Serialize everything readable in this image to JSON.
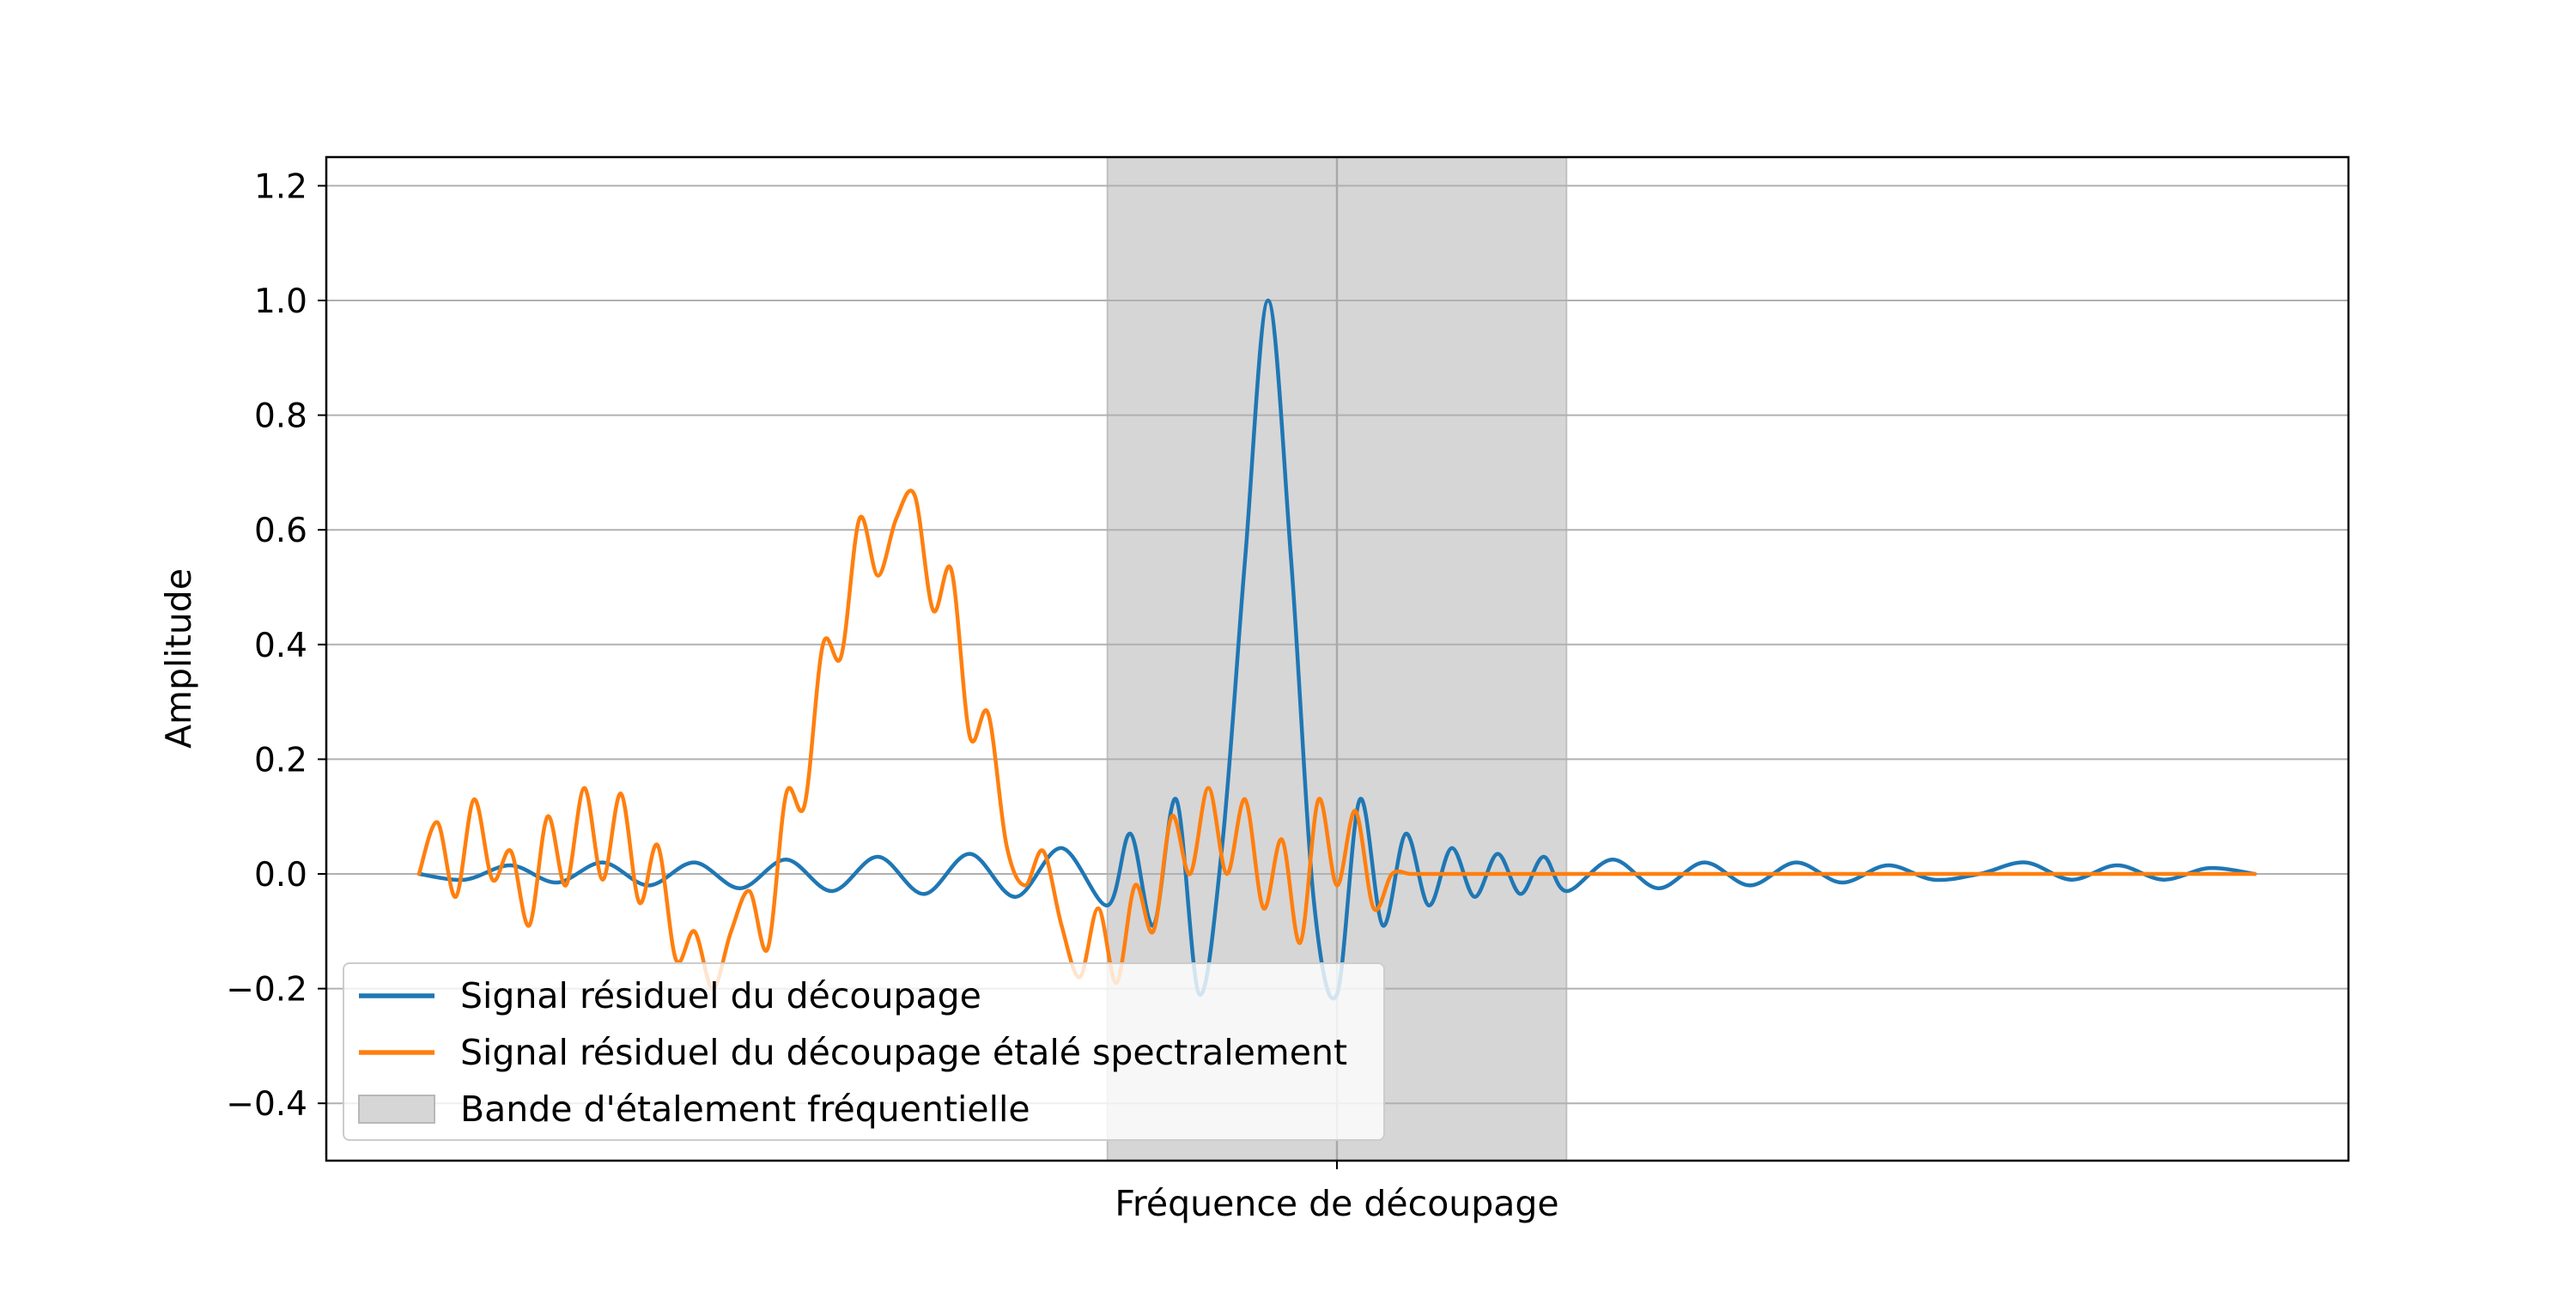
{
  "chart_data": {
    "type": "line",
    "title": "",
    "xlabel": "",
    "ylabel": "Amplitude",
    "x_tick_label": "Fréquence de découpage",
    "x_range": [
      -1.0,
      1.0
    ],
    "ylim": [
      -0.5,
      1.25
    ],
    "y_ticks": [
      -0.4,
      -0.2,
      0.0,
      0.2,
      0.4,
      0.6,
      0.8,
      1.0,
      1.2
    ],
    "y_tick_labels": [
      "−0.4",
      "−0.2",
      "0.0",
      "0.2",
      "0.4",
      "0.6",
      "0.8",
      "1.0",
      "1.2"
    ],
    "grid": "horizontal",
    "legend_position": "lower-left",
    "center_line": {
      "x": 0.0,
      "color": "#a9a9a9"
    },
    "band": {
      "name": "Bande d'étalement fréquentielle",
      "x_start": -0.25,
      "x_end": 0.25,
      "color": "#d6d6d6"
    },
    "series": [
      {
        "name": "Signal résiduel du découpage",
        "color": "#1f77b4",
        "x": [
          -1.0,
          -0.95,
          -0.9,
          -0.85,
          -0.8,
          -0.75,
          -0.7,
          -0.65,
          -0.6,
          -0.55,
          -0.5,
          -0.45,
          -0.4,
          -0.35,
          -0.3,
          -0.25,
          -0.225,
          -0.2,
          -0.175,
          -0.15,
          -0.125,
          -0.1,
          -0.075,
          -0.05,
          -0.025,
          0.0,
          0.025,
          0.05,
          0.075,
          0.1,
          0.125,
          0.15,
          0.175,
          0.2,
          0.225,
          0.25,
          0.3,
          0.35,
          0.4,
          0.45,
          0.5,
          0.55,
          0.6,
          0.65,
          0.7,
          0.75,
          0.8,
          0.85,
          0.9,
          0.95,
          1.0
        ],
        "y": [
          0.0,
          -0.01,
          0.015,
          -0.015,
          0.02,
          -0.02,
          0.02,
          -0.025,
          0.025,
          -0.03,
          0.03,
          -0.035,
          0.035,
          -0.04,
          0.045,
          -0.055,
          0.07,
          -0.09,
          0.13,
          -0.21,
          0.05,
          0.55,
          1.0,
          0.55,
          -0.05,
          -0.21,
          0.13,
          -0.09,
          0.07,
          -0.055,
          0.045,
          -0.04,
          0.035,
          -0.035,
          0.03,
          -0.03,
          0.025,
          -0.025,
          0.02,
          -0.02,
          0.02,
          -0.015,
          0.015,
          -0.01,
          0.0,
          0.02,
          -0.01,
          0.015,
          -0.01,
          0.01,
          0.0
        ]
      },
      {
        "name": "Signal résiduel du découpage étalé spectralement",
        "color": "#ff7f0e",
        "x": [
          -1.0,
          -0.98,
          -0.96,
          -0.94,
          -0.92,
          -0.9,
          -0.88,
          -0.86,
          -0.84,
          -0.82,
          -0.8,
          -0.78,
          -0.76,
          -0.74,
          -0.72,
          -0.7,
          -0.68,
          -0.66,
          -0.64,
          -0.62,
          -0.6,
          -0.58,
          -0.56,
          -0.54,
          -0.52,
          -0.5,
          -0.48,
          -0.46,
          -0.44,
          -0.42,
          -0.4,
          -0.38,
          -0.36,
          -0.34,
          -0.32,
          -0.3,
          -0.28,
          -0.26,
          -0.24,
          -0.22,
          -0.2,
          -0.18,
          -0.16,
          -0.14,
          -0.12,
          -0.1,
          -0.08,
          -0.06,
          -0.04,
          -0.02,
          0.0,
          0.02,
          0.04,
          0.06,
          0.08,
          0.1,
          0.12,
          0.14,
          0.16,
          0.18,
          0.2,
          0.22,
          0.24,
          0.26,
          0.28,
          0.3,
          0.32,
          0.34,
          0.36,
          0.38,
          0.4,
          0.42,
          0.44,
          0.46,
          0.48,
          0.5,
          0.52,
          0.54,
          0.56,
          0.58,
          0.6,
          0.62,
          0.64,
          0.66,
          0.68,
          0.7,
          0.72,
          0.74,
          0.76,
          0.78,
          0.8,
          0.82,
          0.84,
          0.86,
          0.88,
          0.9,
          0.92,
          0.94,
          0.96,
          0.98,
          1.0
        ],
        "y": [
          0.0,
          0.09,
          -0.04,
          0.13,
          -0.01,
          0.04,
          -0.09,
          0.1,
          -0.02,
          0.15,
          -0.01,
          0.14,
          -0.05,
          0.05,
          -0.15,
          -0.1,
          -0.2,
          -0.1,
          -0.03,
          -0.13,
          0.14,
          0.12,
          0.4,
          0.38,
          0.62,
          0.52,
          0.62,
          0.66,
          0.46,
          0.53,
          0.24,
          0.28,
          0.05,
          -0.02,
          0.04,
          -0.09,
          -0.18,
          -0.06,
          -0.19,
          -0.02,
          -0.1,
          0.1,
          0.0,
          0.15,
          0.0,
          0.13,
          -0.06,
          0.06,
          -0.12,
          0.13,
          -0.02,
          0.11,
          -0.06,
          0.0,
          0.0,
          0.0,
          0.0,
          0.0,
          0.0,
          0.0,
          0.0,
          0.0,
          0.0,
          0.0,
          0.0,
          0.0,
          0.0,
          0.0,
          0.0,
          0.0,
          0.0,
          0.0,
          0.0,
          0.0,
          0.0,
          0.0,
          0.0,
          0.0,
          0.0,
          0.0,
          0.0,
          0.0,
          0.0,
          0.0,
          0.0,
          0.0,
          0.0,
          0.0,
          0.0,
          0.0,
          0.0,
          0.0,
          0.0,
          0.0,
          0.0,
          0.0,
          0.0,
          0.0,
          0.0,
          0.0,
          0.0
        ]
      }
    ]
  }
}
